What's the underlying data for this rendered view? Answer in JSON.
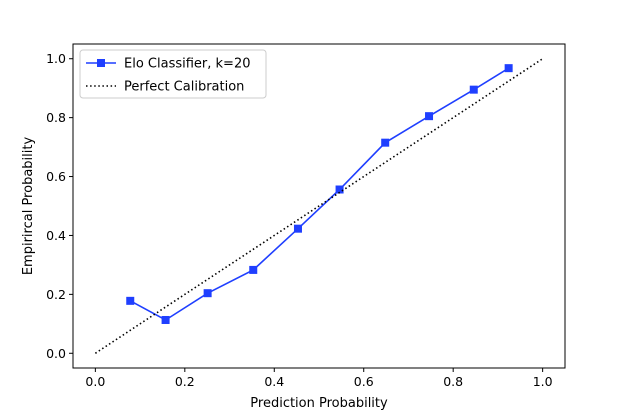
{
  "chart_data": {
    "type": "line",
    "title": "",
    "xlabel": "Prediction Probability",
    "ylabel": "Empirircal Probability",
    "xlim": [
      -0.05,
      1.05
    ],
    "ylim": [
      -0.05,
      1.05
    ],
    "xticks": [
      0.0,
      0.2,
      0.4,
      0.6,
      0.8,
      1.0
    ],
    "yticks": [
      0.0,
      0.2,
      0.4,
      0.6,
      0.8,
      1.0
    ],
    "xtick_labels": [
      "0.0",
      "0.2",
      "0.4",
      "0.6",
      "0.8",
      "1.0"
    ],
    "ytick_labels": [
      "0.0",
      "0.2",
      "0.4",
      "0.6",
      "0.8",
      "1.0"
    ],
    "grid": false,
    "legend_position": "upper-left",
    "series": [
      {
        "name": "Elo Classifier, k=20",
        "color": "#1f3fff",
        "line_style": "solid",
        "marker": "square",
        "x": [
          0.078,
          0.157,
          0.251,
          0.353,
          0.453,
          0.546,
          0.648,
          0.746,
          0.846,
          0.924
        ],
        "y": [
          0.178,
          0.113,
          0.204,
          0.283,
          0.423,
          0.556,
          0.715,
          0.805,
          0.895,
          0.968
        ]
      },
      {
        "name": "Perfect Calibration",
        "color": "#000000",
        "line_style": "dotted",
        "marker": "none",
        "x": [
          0.0,
          1.0
        ],
        "y": [
          0.0,
          1.0
        ]
      }
    ]
  }
}
